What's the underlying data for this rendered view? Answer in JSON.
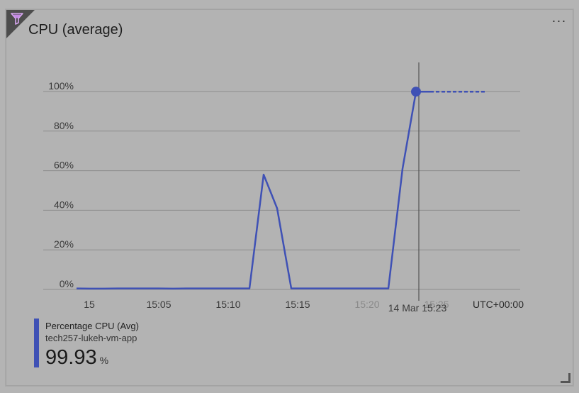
{
  "tile": {
    "title": "CPU (average)",
    "more_label": "···",
    "filter_icon": "filter-icon",
    "more_icon": "ellipsis-icon",
    "resize_icon": "resize-handle-icon"
  },
  "chart_data": {
    "type": "line",
    "title": "CPU (average)",
    "xlabel": "",
    "ylabel": "",
    "y_ticks": [
      "0%",
      "20%",
      "40%",
      "60%",
      "80%",
      "100%"
    ],
    "x_ticks": [
      "15",
      "15:05",
      "15:10",
      "15:15",
      "15:20",
      "15:25"
    ],
    "ylim": [
      0,
      100
    ],
    "xlim": [
      "15:00",
      "15:30"
    ],
    "timezone_label": "UTC+00:00",
    "tooltip_time": "14 Mar 15:23",
    "grid": true,
    "series": [
      {
        "name": "Percentage CPU (Avg)",
        "color": "#3f51b5",
        "x": [
          "15:00",
          "15:01",
          "15:02",
          "15:03",
          "15:04",
          "15:05",
          "15:06",
          "15:07",
          "15:08",
          "15:09",
          "15:10",
          "15:11",
          "15:12",
          "15:13",
          "15:14",
          "15:15",
          "15:16",
          "15:17",
          "15:18",
          "15:19",
          "15:20",
          "15:21",
          "15:22",
          "15:23",
          "15:24",
          "15:25"
        ],
        "values": [
          0.5,
          0.4,
          0.4,
          0.5,
          0.5,
          0.5,
          0.5,
          0.4,
          0.5,
          0.5,
          0.5,
          0.5,
          58,
          41,
          0.5,
          0.5,
          0.5,
          0.5,
          0.5,
          0.5,
          0.5,
          0.5,
          61,
          99.93,
          99.93,
          99.93
        ],
        "projected_from": "15:24"
      }
    ],
    "highlight": {
      "x": "15:23",
      "y": 99.93
    }
  },
  "legend": {
    "metric": "Percentage CPU (Avg)",
    "resource": "tech257-lukeh-vm-app",
    "value": "99.93",
    "unit": "%",
    "color": "#3f51b5"
  }
}
